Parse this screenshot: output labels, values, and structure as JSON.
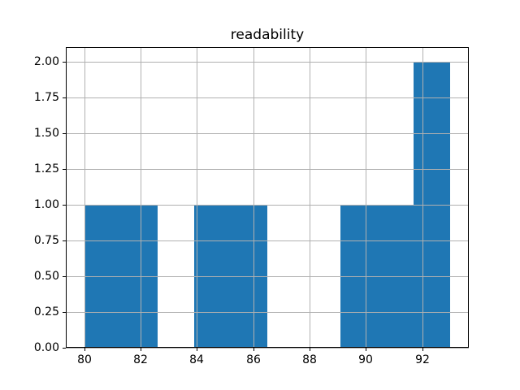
{
  "figure": {
    "background": "#ffffff"
  },
  "chart_data": {
    "type": "bar",
    "subtype": "histogram",
    "title": "readability",
    "xlabel": "",
    "ylabel": "",
    "bin_edges": [
      80.0,
      81.3,
      82.6,
      83.9,
      85.2,
      86.5,
      87.8,
      89.1,
      90.4,
      91.7,
      93.0
    ],
    "counts": [
      1,
      1,
      0,
      1,
      1,
      0,
      0,
      1,
      1,
      2
    ],
    "xtick_values": [
      80,
      82,
      84,
      86,
      88,
      90,
      92
    ],
    "xtick_labels": [
      "80",
      "82",
      "84",
      "86",
      "88",
      "90",
      "92"
    ],
    "ytick_values": [
      0,
      0.25,
      0.5,
      0.75,
      1.0,
      1.25,
      1.5,
      1.75,
      2.0
    ],
    "ytick_labels": [
      "0.00",
      "0.25",
      "0.50",
      "0.75",
      "1.00",
      "1.25",
      "1.50",
      "1.75",
      "2.00"
    ],
    "xlim": [
      79.35,
      93.65
    ],
    "ylim": [
      0,
      2.1
    ],
    "grid": true,
    "grid_above_bars": true,
    "legend": false,
    "colors": {
      "bar": "#1f77b4",
      "grid": "#b0b0b0",
      "spine": "#000000",
      "text": "#000000"
    }
  }
}
